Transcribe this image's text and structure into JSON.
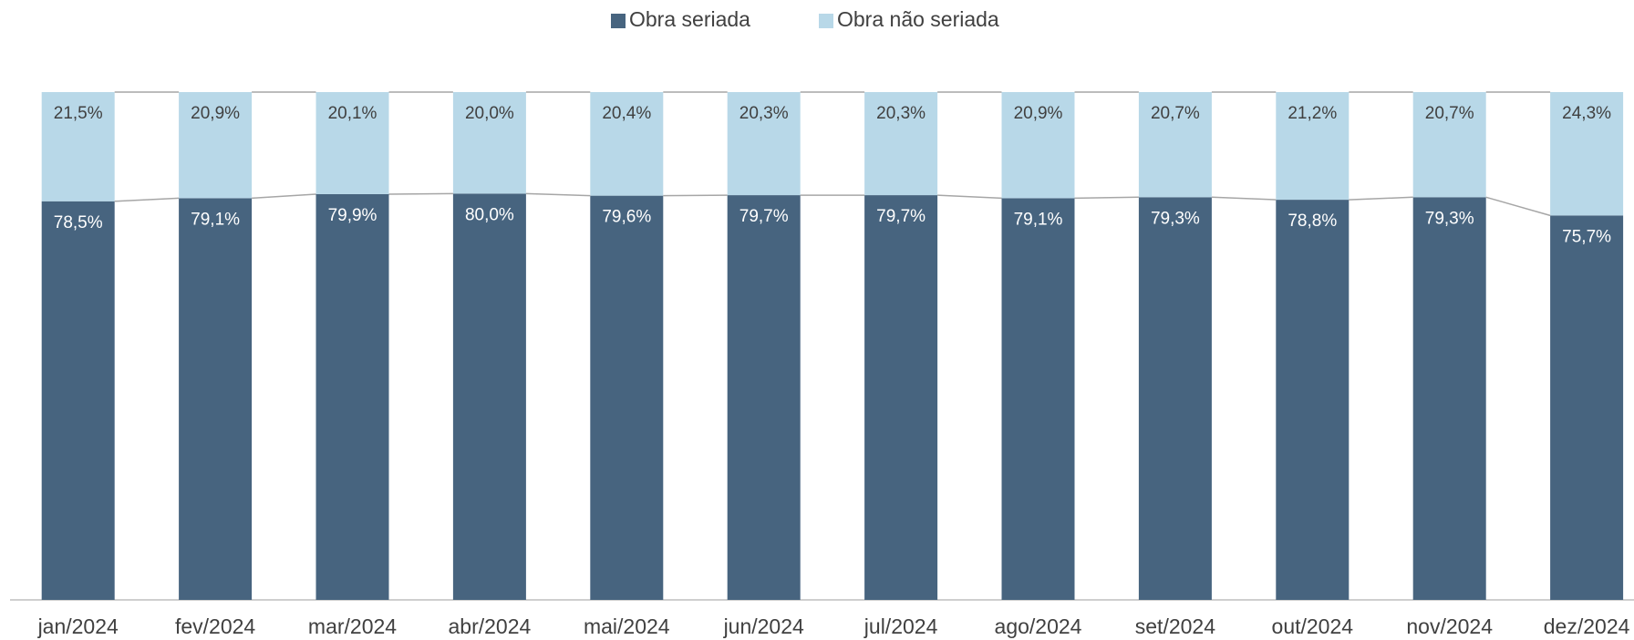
{
  "chart_data": {
    "type": "stacked_bar",
    "categories": [
      "jan/2024",
      "fev/2024",
      "mar/2024",
      "abr/2024",
      "mai/2024",
      "jun/2024",
      "jul/2024",
      "ago/2024",
      "set/2024",
      "out/2024",
      "nov/2024",
      "dez/2024"
    ],
    "series": [
      {
        "name": "Obra seriada",
        "color": "#47647f",
        "values": [
          78.5,
          79.1,
          79.9,
          80.0,
          79.6,
          79.7,
          79.7,
          79.1,
          79.3,
          78.8,
          79.3,
          75.7
        ],
        "value_labels": [
          "78,5%",
          "79,1%",
          "79,9%",
          "80,0%",
          "79,6%",
          "79,7%",
          "79,7%",
          "79,1%",
          "79,3%",
          "78,8%",
          "79,3%",
          "75,7%"
        ]
      },
      {
        "name": "Obra não seriada",
        "color": "#b8d8e8",
        "values": [
          21.5,
          20.9,
          20.1,
          20.0,
          20.4,
          20.3,
          20.3,
          20.9,
          20.7,
          21.2,
          20.7,
          24.3
        ],
        "value_labels": [
          "21,5%",
          "20,9%",
          "20,1%",
          "20,0%",
          "20,4%",
          "20,3%",
          "20,3%",
          "20,9%",
          "20,7%",
          "21,2%",
          "20,7%",
          "24,3%"
        ]
      }
    ],
    "ylim": [
      0,
      100
    ]
  }
}
